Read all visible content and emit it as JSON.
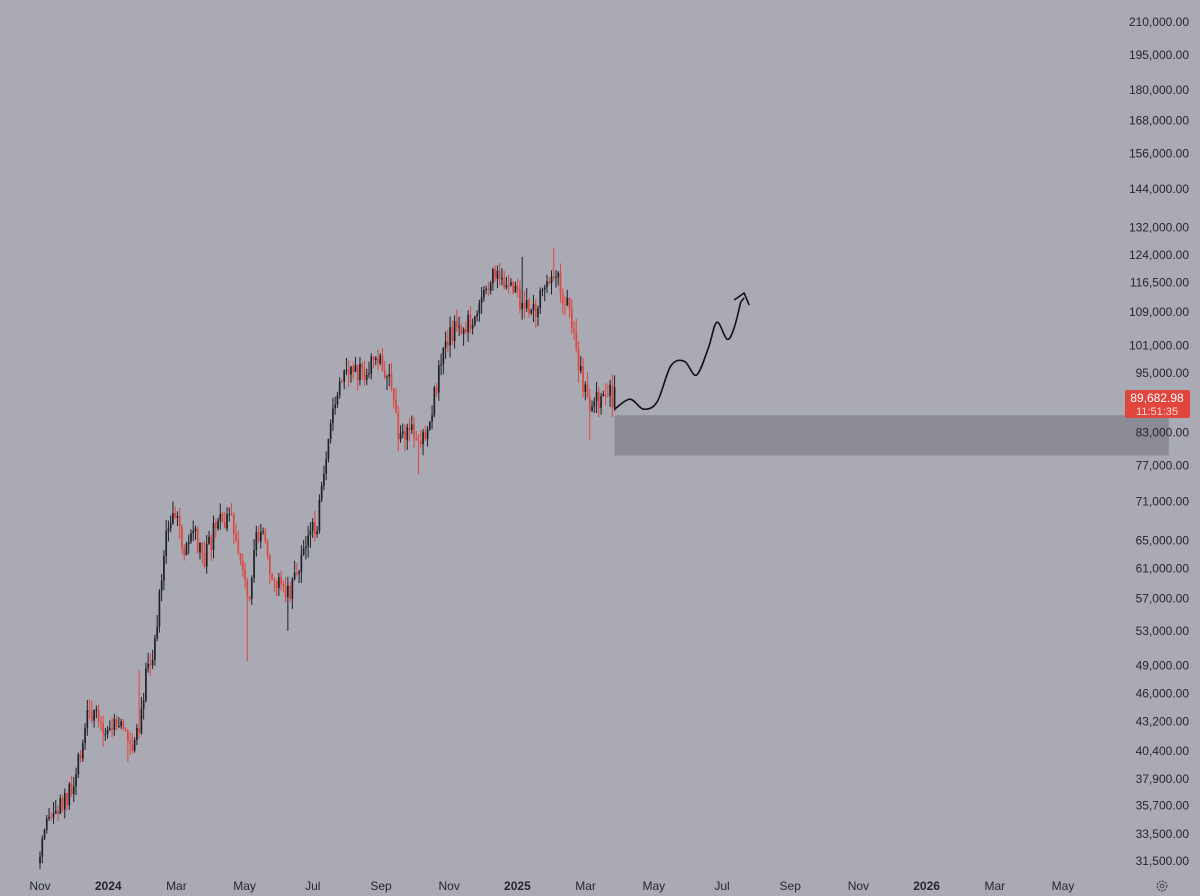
{
  "colors": {
    "background": "#a9aab3",
    "candle_up": "#1f2027",
    "candle_down": "#e0463d",
    "zone": "#868790",
    "axis_text": "#26272c",
    "price_label_bg": "#e0463d",
    "projection": "#101114"
  },
  "icons": {
    "settings": "gear-icon"
  },
  "chart_data": {
    "type": "candlestick",
    "title": "",
    "xlabel": "",
    "ylabel": "",
    "y_scale": "log",
    "ylim": [
      30000,
      222000
    ],
    "grid": false,
    "y_ticks": [
      {
        "value": 210000,
        "label": "210,000.00"
      },
      {
        "value": 195000,
        "label": "195,000.00"
      },
      {
        "value": 180000,
        "label": "180,000.00"
      },
      {
        "value": 168000,
        "label": "168,000.00"
      },
      {
        "value": 156000,
        "label": "156,000.00"
      },
      {
        "value": 144000,
        "label": "144,000.00"
      },
      {
        "value": 132000,
        "label": "132,000.00"
      },
      {
        "value": 124000,
        "label": "124,000.00"
      },
      {
        "value": 116500,
        "label": "116,500.00"
      },
      {
        "value": 109000,
        "label": "109,000.00"
      },
      {
        "value": 101000,
        "label": "101,000.00"
      },
      {
        "value": 95000,
        "label": "95,000.00"
      },
      {
        "value": 83000,
        "label": "83,000.00"
      },
      {
        "value": 77000,
        "label": "77,000.00"
      },
      {
        "value": 71000,
        "label": "71,000.00"
      },
      {
        "value": 65000,
        "label": "65,000.00"
      },
      {
        "value": 61000,
        "label": "61,000.00"
      },
      {
        "value": 57000,
        "label": "57,000.00"
      },
      {
        "value": 53000,
        "label": "53,000.00"
      },
      {
        "value": 49000,
        "label": "49,000.00"
      },
      {
        "value": 46000,
        "label": "46,000.00"
      },
      {
        "value": 43200,
        "label": "43,200.00"
      },
      {
        "value": 40400,
        "label": "40,400.00"
      },
      {
        "value": 37900,
        "label": "37,900.00"
      },
      {
        "value": 35700,
        "label": "35,700.00"
      },
      {
        "value": 33500,
        "label": "33,500.00"
      },
      {
        "value": 31500,
        "label": "31,500.00"
      }
    ],
    "x_ticks": [
      {
        "t": 0,
        "label": "Nov",
        "bold": false
      },
      {
        "t": 2,
        "label": "2024",
        "bold": true
      },
      {
        "t": 4,
        "label": "Mar",
        "bold": false
      },
      {
        "t": 6,
        "label": "May",
        "bold": false
      },
      {
        "t": 8,
        "label": "Jul",
        "bold": false
      },
      {
        "t": 10,
        "label": "Sep",
        "bold": false
      },
      {
        "t": 12,
        "label": "Nov",
        "bold": false
      },
      {
        "t": 14,
        "label": "2025",
        "bold": true
      },
      {
        "t": 16,
        "label": "Mar",
        "bold": false
      },
      {
        "t": 18,
        "label": "May",
        "bold": false
      },
      {
        "t": 20,
        "label": "Jul",
        "bold": false
      },
      {
        "t": 22,
        "label": "Sep",
        "bold": false
      },
      {
        "t": 24,
        "label": "Nov",
        "bold": false
      },
      {
        "t": 26,
        "label": "2026",
        "bold": true
      },
      {
        "t": 28,
        "label": "Mar",
        "bold": false
      },
      {
        "t": 30,
        "label": "May",
        "bold": false
      }
    ],
    "last_price": {
      "value": 89682.98,
      "label": "89,682.98",
      "countdown": "11:51:35"
    },
    "support_zone": {
      "from": 78800,
      "to": 86300,
      "start_t": 16.85,
      "end_t": 33.1
    },
    "projection_path": [
      {
        "t": 16.85,
        "p": 87500
      },
      {
        "t": 17.3,
        "p": 89500
      },
      {
        "t": 17.7,
        "p": 87500
      },
      {
        "t": 18.1,
        "p": 89000
      },
      {
        "t": 18.5,
        "p": 96500
      },
      {
        "t": 18.9,
        "p": 97500
      },
      {
        "t": 19.25,
        "p": 94500
      },
      {
        "t": 19.6,
        "p": 100500
      },
      {
        "t": 19.85,
        "p": 106500
      },
      {
        "t": 20.15,
        "p": 102500
      },
      {
        "t": 20.35,
        "p": 105000
      },
      {
        "t": 20.55,
        "p": 111500
      }
    ],
    "projection_arrow_tip": {
      "t": 20.65,
      "p": 112500
    }
  }
}
